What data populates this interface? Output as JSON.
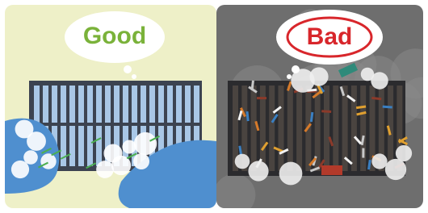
{
  "panels": [
    {
      "label": "Good"
    },
    {
      "label": "Bad"
    }
  ]
}
